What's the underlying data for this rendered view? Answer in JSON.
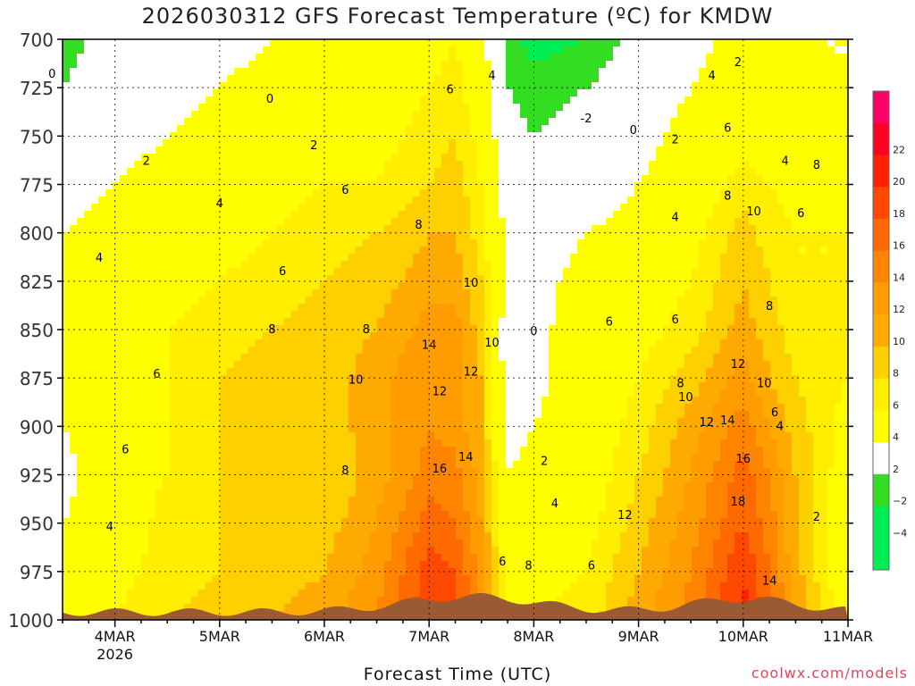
{
  "title": "2026030312 GFS Forecast Temperature (ºC) for KMDW",
  "xlabel": "Forecast Time (UTC)",
  "watermark": "coolwx.com/models",
  "chart_data": {
    "type": "heatmap",
    "subtype": "time-pressure cross-section, filled contours",
    "title": "2026030312 GFS Forecast Temperature (ºC) for KMDW",
    "xlabel": "Forecast Time (UTC)",
    "ylabel": "",
    "y_axis": {
      "ticks": [
        700,
        725,
        750,
        775,
        800,
        825,
        850,
        875,
        900,
        925,
        950,
        975,
        1000
      ],
      "range": [
        700,
        1000
      ],
      "inverted": true,
      "units": "hPa"
    },
    "x_axis": {
      "ticks": [
        {
          "label": "4MAR",
          "sublabel": "2026",
          "day": 4
        },
        {
          "label": "5MAR",
          "sublabel": "",
          "day": 5
        },
        {
          "label": "6MAR",
          "sublabel": "",
          "day": 6
        },
        {
          "label": "7MAR",
          "sublabel": "",
          "day": 7
        },
        {
          "label": "8MAR",
          "sublabel": "",
          "day": 8
        },
        {
          "label": "9MAR",
          "sublabel": "",
          "day": 9
        },
        {
          "label": "10MAR",
          "sublabel": "",
          "day": 10
        },
        {
          "label": "11MAR",
          "sublabel": "",
          "day": 11
        }
      ],
      "range_days": [
        3.5,
        11.0
      ]
    },
    "grid": true,
    "colorbar": {
      "levels": [
        {
          "label": "",
          "color": "#00ee55"
        },
        {
          "label": "-4",
          "color": "#00ee55"
        },
        {
          "label": "-2",
          "color": "#33dd22"
        },
        {
          "label": "2",
          "color": "#ffffff"
        },
        {
          "label": "4",
          "color": "#ffff00"
        },
        {
          "label": "6",
          "color": "#ffee00"
        },
        {
          "label": "8",
          "color": "#ffd000"
        },
        {
          "label": "10",
          "color": "#ffaa00"
        },
        {
          "label": "12",
          "color": "#ff9d00"
        },
        {
          "label": "14",
          "color": "#ff8400"
        },
        {
          "label": "16",
          "color": "#ff6a00"
        },
        {
          "label": "18",
          "color": "#ff4800"
        },
        {
          "label": "20",
          "color": "#ff2200"
        },
        {
          "label": "22",
          "color": "#ff0022"
        },
        {
          "label": "",
          "color": "#ff0066"
        }
      ]
    },
    "temperature_grid": {
      "days": [
        3.5,
        4.0,
        4.5,
        5.0,
        5.5,
        6.0,
        6.5,
        7.0,
        7.25,
        7.5,
        7.75,
        8.0,
        8.5,
        9.0,
        9.5,
        10.0,
        10.25,
        10.5,
        11.0
      ],
      "levels_hpa": [
        700,
        725,
        750,
        775,
        800,
        825,
        850,
        875,
        900,
        925,
        950,
        975,
        1000
      ],
      "rows": [
        [
          -3,
          -1,
          0,
          1,
          2,
          3,
          4,
          5,
          6,
          3,
          -3,
          -5,
          -4,
          -1,
          1,
          3,
          2,
          2,
          2
        ],
        [
          -2,
          0,
          1,
          2,
          3,
          3,
          4,
          6,
          7,
          4,
          -2,
          -3,
          -2,
          0,
          2,
          4,
          3,
          2,
          2
        ],
        [
          0,
          1,
          2,
          3,
          4,
          5,
          5,
          7,
          8,
          5,
          -1,
          -2,
          -1,
          1,
          3,
          5,
          4,
          3,
          3
        ],
        [
          1,
          2,
          3,
          4,
          5,
          6,
          6,
          8,
          9,
          6,
          0,
          -1,
          0,
          2,
          4,
          7,
          6,
          5,
          5
        ],
        [
          2,
          3,
          4,
          5,
          6,
          7,
          8,
          10,
          10,
          7,
          1,
          0,
          2,
          3,
          5,
          9,
          7,
          6,
          6
        ],
        [
          2,
          4,
          5,
          6,
          7,
          8,
          9,
          11,
          11,
          8,
          1,
          1,
          3,
          4,
          6,
          10,
          8,
          6,
          6
        ],
        [
          3,
          5,
          6,
          7,
          8,
          9,
          10,
          13,
          13,
          9,
          0,
          1,
          4,
          5,
          7,
          11,
          9,
          7,
          6
        ],
        [
          3,
          5,
          6,
          8,
          9,
          9,
          11,
          14,
          13,
          10,
          0,
          1,
          4,
          6,
          9,
          13,
          10,
          8,
          6
        ],
        [
          2,
          4,
          6,
          8,
          10,
          9,
          11,
          14,
          13,
          10,
          1,
          2,
          4,
          7,
          11,
          15,
          12,
          9,
          5
        ],
        [
          1,
          4,
          6,
          8,
          9,
          8,
          11,
          15,
          15,
          11,
          2,
          3,
          4,
          8,
          12,
          17,
          14,
          10,
          4
        ],
        [
          2,
          4,
          7,
          8,
          9,
          9,
          12,
          17,
          16,
          12,
          3,
          4,
          5,
          9,
          13,
          18,
          15,
          10,
          3
        ],
        [
          3,
          5,
          7,
          8,
          9,
          10,
          13,
          19,
          18,
          13,
          5,
          5,
          6,
          10,
          14,
          20,
          16,
          11,
          3
        ],
        [
          4,
          6,
          8,
          9,
          10,
          11,
          14,
          20,
          19,
          14,
          6,
          6,
          7,
          11,
          15,
          21,
          17,
          12,
          4
        ]
      ]
    },
    "contour_labels": [
      {
        "text": "0",
        "day": 3.4,
        "p": 718
      },
      {
        "text": "0",
        "day": 5.48,
        "p": 731
      },
      {
        "text": "2",
        "day": 4.3,
        "p": 763
      },
      {
        "text": "2",
        "day": 5.9,
        "p": 755
      },
      {
        "text": "4",
        "day": 5.0,
        "p": 785
      },
      {
        "text": "4",
        "day": 3.85,
        "p": 813
      },
      {
        "text": "6",
        "day": 5.6,
        "p": 820
      },
      {
        "text": "6",
        "day": 6.2,
        "p": 778
      },
      {
        "text": "8",
        "day": 5.5,
        "p": 850
      },
      {
        "text": "8",
        "day": 6.4,
        "p": 850
      },
      {
        "text": "8",
        "day": 6.9,
        "p": 796
      },
      {
        "text": "10",
        "day": 7.4,
        "p": 826
      },
      {
        "text": "10",
        "day": 6.3,
        "p": 876
      },
      {
        "text": "6",
        "day": 4.4,
        "p": 873
      },
      {
        "text": "6",
        "day": 4.1,
        "p": 912
      },
      {
        "text": "4",
        "day": 3.95,
        "p": 952
      },
      {
        "text": "8",
        "day": 6.2,
        "p": 923
      },
      {
        "text": "14",
        "day": 7.0,
        "p": 858
      },
      {
        "text": "12",
        "day": 7.1,
        "p": 882
      },
      {
        "text": "12",
        "day": 7.4,
        "p": 872
      },
      {
        "text": "10",
        "day": 7.6,
        "p": 857
      },
      {
        "text": "14",
        "day": 7.35,
        "p": 916
      },
      {
        "text": "16",
        "day": 7.1,
        "p": 922
      },
      {
        "text": "6",
        "day": 7.2,
        "p": 726
      },
      {
        "text": "4",
        "day": 7.6,
        "p": 719
      },
      {
        "text": "2",
        "day": 8.1,
        "p": 918
      },
      {
        "text": "4",
        "day": 8.2,
        "p": 940
      },
      {
        "text": "6",
        "day": 7.7,
        "p": 970
      },
      {
        "text": "8",
        "day": 7.95,
        "p": 972
      },
      {
        "text": "0",
        "day": 8.0,
        "p": 851
      },
      {
        "text": "-2",
        "day": 8.5,
        "p": 741
      },
      {
        "text": "0",
        "day": 8.95,
        "p": 747
      },
      {
        "text": "2",
        "day": 9.35,
        "p": 752
      },
      {
        "text": "2",
        "day": 9.95,
        "p": 712
      },
      {
        "text": "4",
        "day": 9.7,
        "p": 719
      },
      {
        "text": "6",
        "day": 9.85,
        "p": 746
      },
      {
        "text": "4",
        "day": 10.4,
        "p": 763
      },
      {
        "text": "8",
        "day": 10.7,
        "p": 765
      },
      {
        "text": "4",
        "day": 9.35,
        "p": 792
      },
      {
        "text": "8",
        "day": 9.85,
        "p": 781
      },
      {
        "text": "10",
        "day": 10.1,
        "p": 789
      },
      {
        "text": "6",
        "day": 10.55,
        "p": 790
      },
      {
        "text": "6",
        "day": 8.72,
        "p": 846
      },
      {
        "text": "6",
        "day": 9.35,
        "p": 845
      },
      {
        "text": "8",
        "day": 10.25,
        "p": 838
      },
      {
        "text": "12",
        "day": 9.95,
        "p": 868
      },
      {
        "text": "8",
        "day": 9.4,
        "p": 878
      },
      {
        "text": "10",
        "day": 9.45,
        "p": 885
      },
      {
        "text": "10",
        "day": 10.2,
        "p": 878
      },
      {
        "text": "12",
        "day": 9.65,
        "p": 898
      },
      {
        "text": "14",
        "day": 9.85,
        "p": 897
      },
      {
        "text": "16",
        "day": 10.0,
        "p": 917
      },
      {
        "text": "6",
        "day": 10.3,
        "p": 893
      },
      {
        "text": "4",
        "day": 10.35,
        "p": 900
      },
      {
        "text": "12",
        "day": 8.87,
        "p": 946
      },
      {
        "text": "18",
        "day": 9.95,
        "p": 939
      },
      {
        "text": "14",
        "day": 10.25,
        "p": 980
      },
      {
        "text": "2",
        "day": 10.7,
        "p": 947
      },
      {
        "text": "6",
        "day": 8.55,
        "p": 972
      }
    ]
  }
}
